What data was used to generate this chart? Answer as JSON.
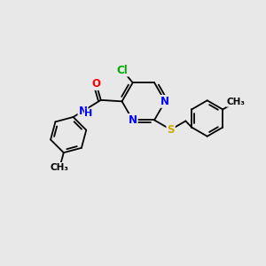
{
  "bg_color": "#e8e8e8",
  "atom_colors": {
    "C": "#000000",
    "N": "#0000ff",
    "O": "#ff0000",
    "S": "#ccaa00",
    "Cl": "#00aa00",
    "H": "#000000"
  },
  "bond_color": "#000000",
  "font_size": 8.5,
  "figsize": [
    3.0,
    3.0
  ],
  "dpi": 100
}
